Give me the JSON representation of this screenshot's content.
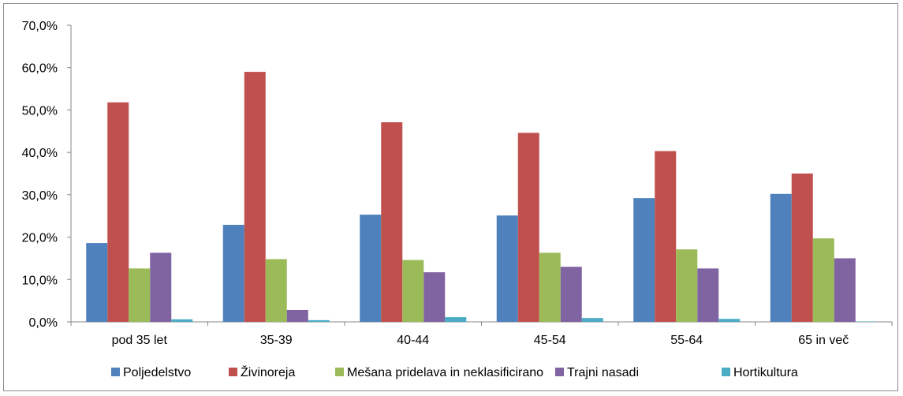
{
  "chart_data": {
    "type": "bar",
    "categories": [
      "pod 35 let",
      "35-39",
      "40-44",
      "45-54",
      "55-64",
      "65 in več"
    ],
    "series": [
      {
        "name": "Poljedelstvo",
        "color": "#4f81bd",
        "values": [
          18.6,
          22.9,
          25.3,
          25.1,
          29.2,
          30.2
        ]
      },
      {
        "name": "Živinoreja",
        "color": "#c0504d",
        "values": [
          51.8,
          59.0,
          47.1,
          44.6,
          40.3,
          35.0
        ]
      },
      {
        "name": "Mešana pridelava in neklasificirano",
        "color": "#9bbb59",
        "values": [
          12.6,
          14.8,
          14.6,
          16.3,
          17.1,
          19.7
        ]
      },
      {
        "name": "Trajni nasadi",
        "color": "#8064a2",
        "values": [
          16.3,
          2.8,
          11.7,
          13.0,
          12.6,
          15.0
        ]
      },
      {
        "name": "Hortikultura",
        "color": "#4bacc6",
        "values": [
          0.6,
          0.4,
          1.1,
          0.9,
          0.7,
          0.1
        ]
      }
    ],
    "ylim": [
      0,
      70
    ],
    "yticks": [
      "0,0%",
      "10,0%",
      "20,0%",
      "30,0%",
      "40,0%",
      "50,0%",
      "60,0%",
      "70,0%"
    ],
    "title": "",
    "xlabel": "",
    "ylabel": "",
    "grid": false,
    "legend": "bottom"
  }
}
